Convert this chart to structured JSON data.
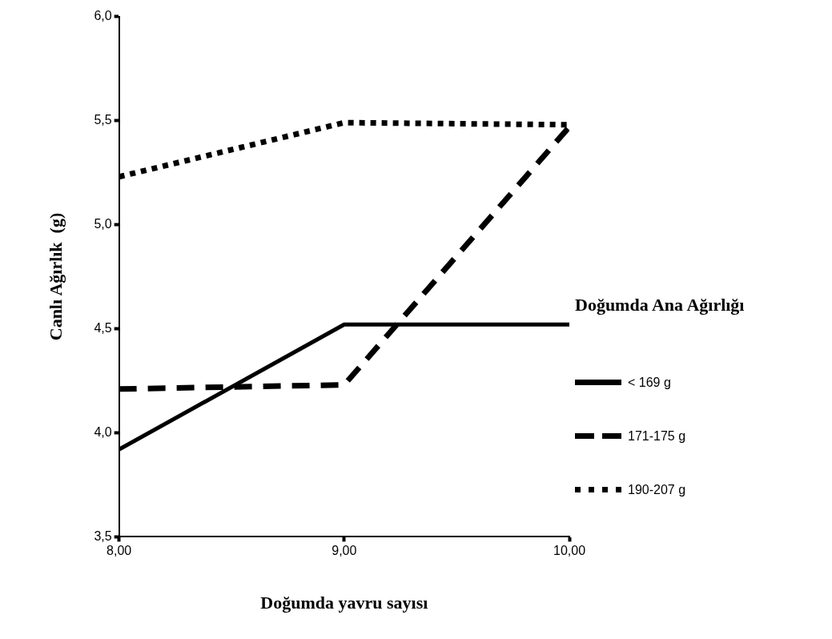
{
  "chart_data": {
    "type": "line",
    "xlabel": "Doğumda yavru sayısı",
    "ylabel": "Canlı Ağırlık  (g)",
    "legend_title": "Doğumda Ana Ağırlığı",
    "legend": "right",
    "grid": false,
    "marker": "none",
    "x": [
      8,
      9,
      10
    ],
    "xlim": [
      8,
      10
    ],
    "xticks": [
      {
        "value": 8,
        "label": "8,00"
      },
      {
        "value": 9,
        "label": "9,00"
      },
      {
        "value": 10,
        "label": "10,00"
      }
    ],
    "ylim": [
      3.5,
      6
    ],
    "yticks": [
      {
        "value": 3.5,
        "label": "3,5"
      },
      {
        "value": 4,
        "label": "4,0"
      },
      {
        "value": 4.5,
        "label": "4,5"
      },
      {
        "value": 5,
        "label": "5,0"
      },
      {
        "value": 5.5,
        "label": "5,5"
      },
      {
        "value": 6,
        "label": "6,0"
      }
    ],
    "series": [
      {
        "name": "< 169 g",
        "color": "#000000",
        "line_style": "solid",
        "values": [
          3.92,
          4.52,
          4.52
        ]
      },
      {
        "name": "171-175 g",
        "color": "#000000",
        "line_style": "dashed",
        "values": [
          4.21,
          4.23,
          5.47
        ]
      },
      {
        "name": "190-207 g",
        "color": "#000000",
        "line_style": "dotted",
        "values": [
          5.23,
          5.49,
          5.48
        ]
      }
    ]
  }
}
